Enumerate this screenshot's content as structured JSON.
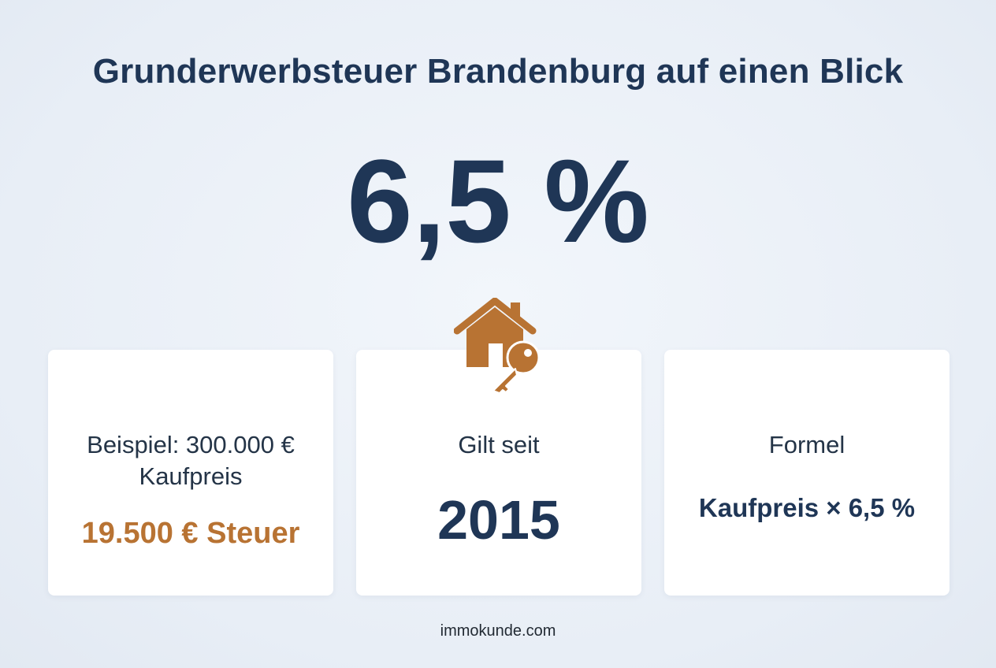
{
  "title": "Grunderwerbsteuer Brandenburg auf einen Blick",
  "rate": "6,5 %",
  "icon": "house-key-icon",
  "accent_color": "#b87333",
  "primary_color": "#1f3656",
  "cards": [
    {
      "label_line1": "Beispiel: 300.000 €",
      "label_line2": "Kaufpreis",
      "value": "19.500 € Steuer"
    },
    {
      "label": "Gilt seit",
      "value": "2015"
    },
    {
      "label": "Formel",
      "value": "Kaufpreis × 6,5 %"
    }
  ],
  "footer": "immokunde.com"
}
